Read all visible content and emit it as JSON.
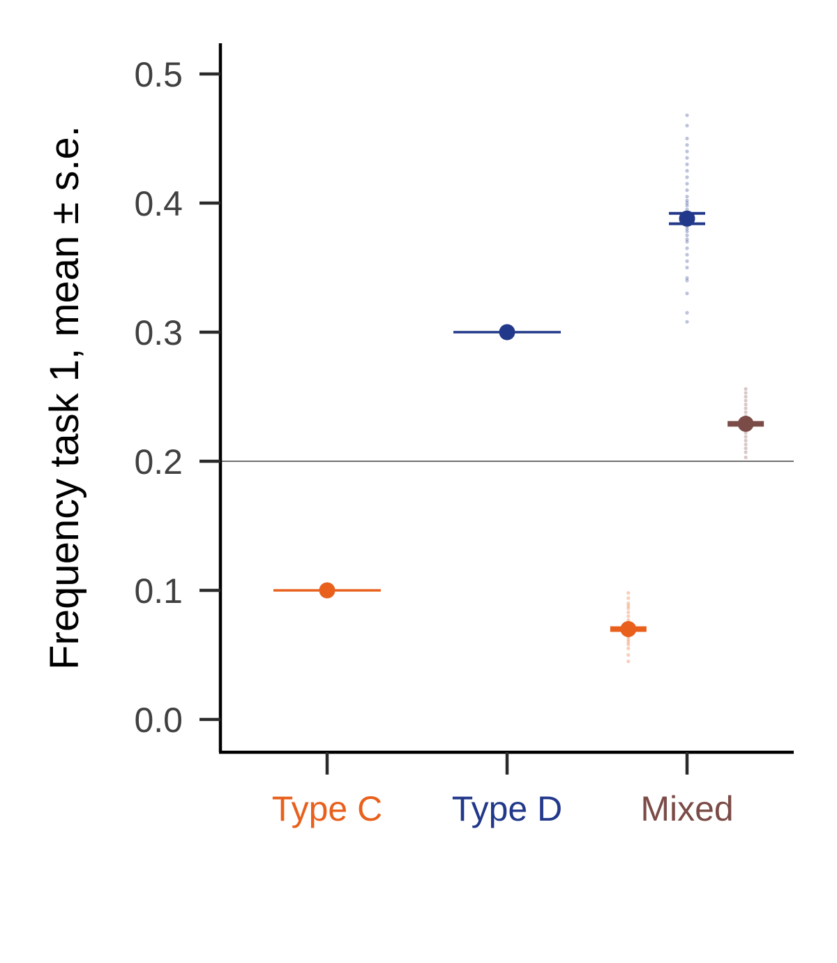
{
  "chart_data": {
    "type": "scatter",
    "title": "",
    "ylabel": "Frequency task 1, mean ± s.e.",
    "xlabel": "",
    "ylim": [
      -0.025,
      0.525
    ],
    "yticks": [
      0.0,
      0.1,
      0.2,
      0.3,
      0.4,
      0.5
    ],
    "ytick_labels": [
      "0.0",
      "0.1",
      "0.2",
      "0.3",
      "0.4",
      "0.5"
    ],
    "reference_line_y": 0.2,
    "grid": false,
    "categories": [
      {
        "label": "Type C",
        "color": "#E8601C"
      },
      {
        "label": "Type D",
        "color": "#22388A"
      },
      {
        "label": "Mixed",
        "color": "#7B4B47"
      }
    ],
    "points": [
      {
        "category": "Type C",
        "offset": 0.0,
        "mean": 0.1,
        "se": 0.0,
        "color": "#E8601C",
        "style": "wide-bar"
      },
      {
        "category": "Type D",
        "offset": 0.0,
        "mean": 0.3,
        "se": 0.0,
        "color": "#22388A",
        "style": "wide-bar"
      },
      {
        "category": "Mixed",
        "offset": -0.33,
        "mean": 0.07,
        "se": 0.003,
        "color": "#E8601C",
        "style": "short-bar",
        "samples": [
          0.045,
          0.05,
          0.055,
          0.058,
          0.06,
          0.062,
          0.064,
          0.065,
          0.066,
          0.067,
          0.068,
          0.069,
          0.07,
          0.071,
          0.072,
          0.073,
          0.074,
          0.075,
          0.077,
          0.08,
          0.083,
          0.086,
          0.088,
          0.09,
          0.094,
          0.098
        ]
      },
      {
        "category": "Mixed",
        "offset": 0.0,
        "mean": 0.388,
        "se": 0.004,
        "color": "#22388A",
        "style": "double-bar",
        "samples": [
          0.308,
          0.315,
          0.33,
          0.34,
          0.342,
          0.35,
          0.355,
          0.36,
          0.365,
          0.37,
          0.372,
          0.375,
          0.378,
          0.38,
          0.382,
          0.384,
          0.386,
          0.388,
          0.39,
          0.392,
          0.395,
          0.398,
          0.4,
          0.402,
          0.405,
          0.41,
          0.415,
          0.42,
          0.425,
          0.43,
          0.435,
          0.44,
          0.445,
          0.45,
          0.46,
          0.468
        ]
      },
      {
        "category": "Mixed",
        "offset": 0.33,
        "mean": 0.229,
        "se": 0.002,
        "color": "#7B4B47",
        "style": "short-bar",
        "samples": [
          0.203,
          0.207,
          0.21,
          0.213,
          0.216,
          0.219,
          0.222,
          0.225,
          0.227,
          0.229,
          0.231,
          0.233,
          0.235,
          0.238,
          0.241,
          0.244,
          0.247,
          0.25,
          0.253,
          0.256
        ]
      }
    ]
  }
}
